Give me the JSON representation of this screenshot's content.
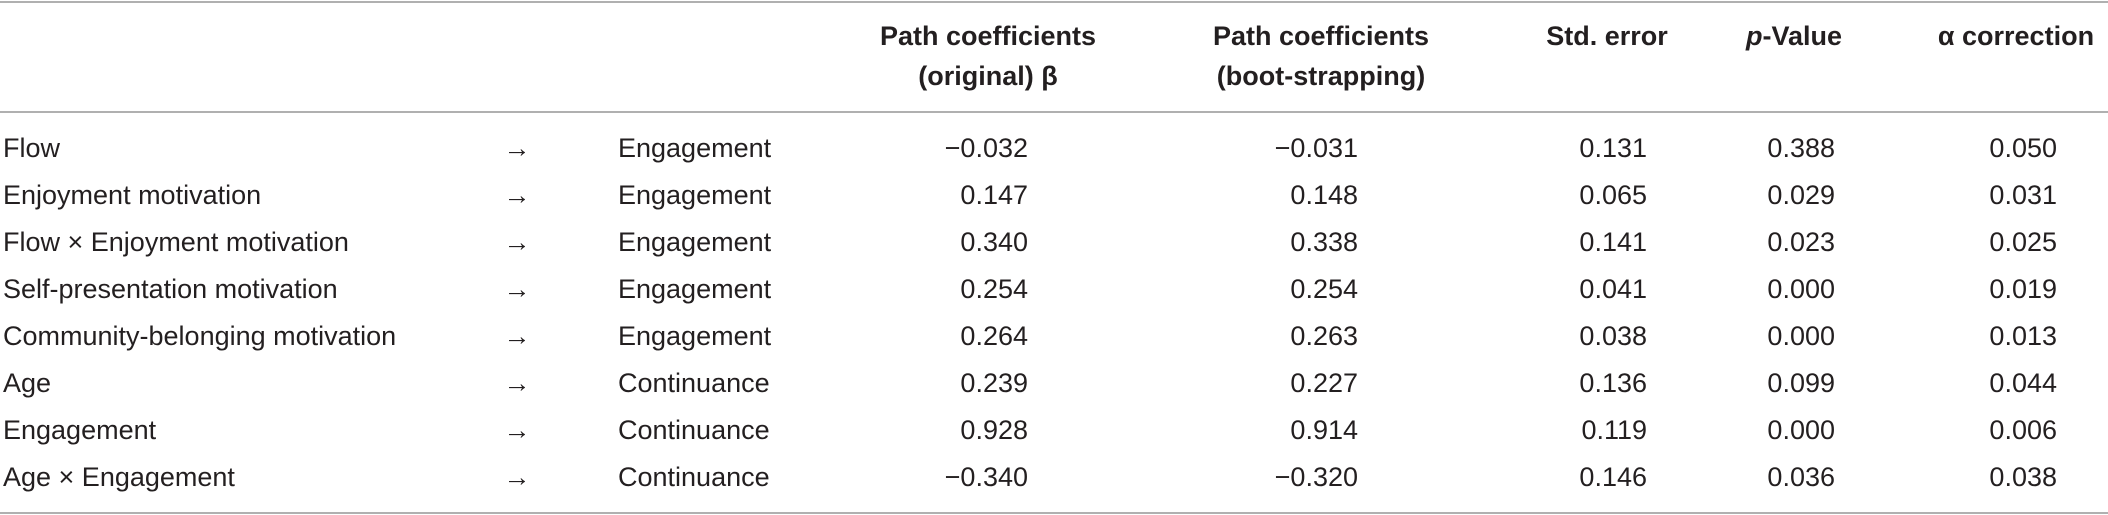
{
  "table": {
    "header": [
      [
        "Path coefficients",
        "(original) β"
      ],
      [
        "Path coefficients",
        "(boot-strapping)"
      ],
      [
        "Std. error"
      ],
      [
        "p-Value"
      ],
      [
        "α correction"
      ]
    ],
    "rows": [
      [
        "Flow",
        "→",
        "Engagement",
        "−0.032",
        "−0.031",
        "0.131",
        "0.388",
        "0.050"
      ],
      [
        "Enjoyment motivation",
        "→",
        "Engagement",
        "0.147",
        "0.148",
        "0.065",
        "0.029",
        "0.031"
      ],
      [
        "Flow × Enjoyment motivation",
        "→",
        "Engagement",
        "0.340",
        "0.338",
        "0.141",
        "0.023",
        "0.025"
      ],
      [
        "Self-presentation motivation",
        "→",
        "Engagement",
        "0.254",
        "0.254",
        "0.041",
        "0.000",
        "0.019"
      ],
      [
        "Community-belonging motivation",
        "→",
        "Engagement",
        "0.264",
        "0.263",
        "0.038",
        "0.000",
        "0.013"
      ],
      [
        "Age",
        "→",
        "Continuance",
        "0.239",
        "0.227",
        "0.136",
        "0.099",
        "0.044"
      ],
      [
        "Engagement",
        "→",
        "Continuance",
        "0.928",
        "0.914",
        "0.119",
        "0.000",
        "0.006"
      ],
      [
        "Age × Engagement",
        "→",
        "Continuance",
        "−0.340",
        "−0.320",
        "0.146",
        "0.036",
        "0.038"
      ]
    ]
  }
}
